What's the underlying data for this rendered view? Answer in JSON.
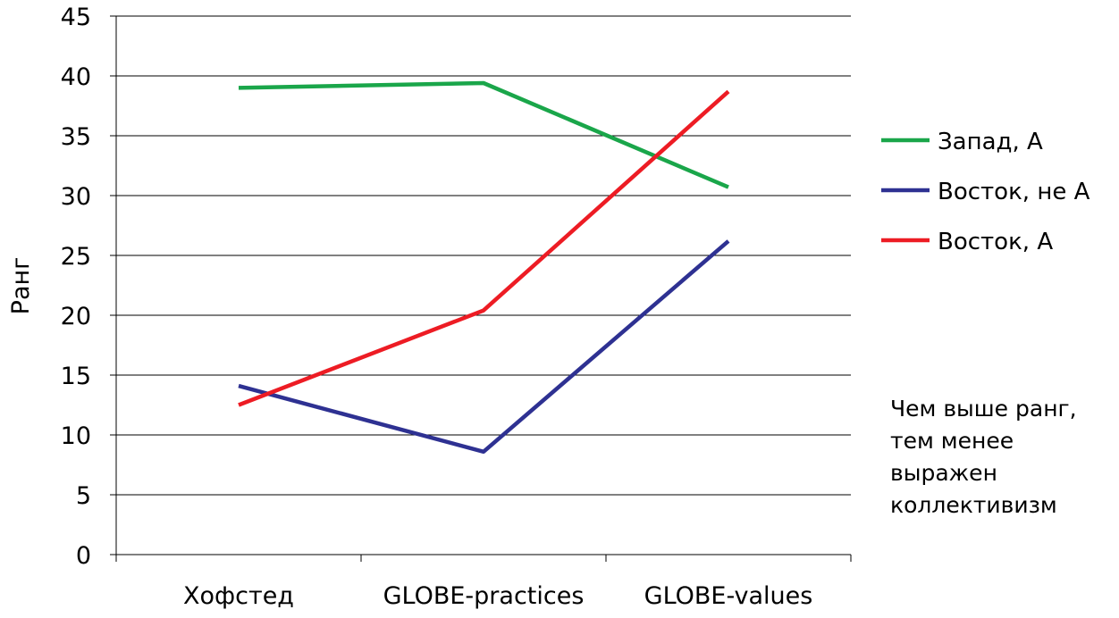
{
  "chart_data": {
    "type": "line",
    "ylabel": "Ранг",
    "xlabel": "",
    "ylim": [
      0,
      45
    ],
    "ytick_step": 5,
    "grid": "horizontal",
    "legend_position": "right",
    "categories": [
      "Хофстед",
      "GLOBE-practices",
      "GLOBE-values"
    ],
    "series": [
      {
        "name": "Запад, А",
        "color": "#1aa64a",
        "values": [
          39.0,
          39.4,
          30.7
        ]
      },
      {
        "name": "Восток, не А",
        "color": "#2e3192",
        "values": [
          14.1,
          8.6,
          26.2
        ]
      },
      {
        "name": "Восток, А",
        "color": "#ed1c24",
        "values": [
          12.5,
          20.4,
          38.7
        ]
      }
    ]
  },
  "annotation": "Чем выше ранг,\nтем менее\nвыражен\nколлективизм"
}
